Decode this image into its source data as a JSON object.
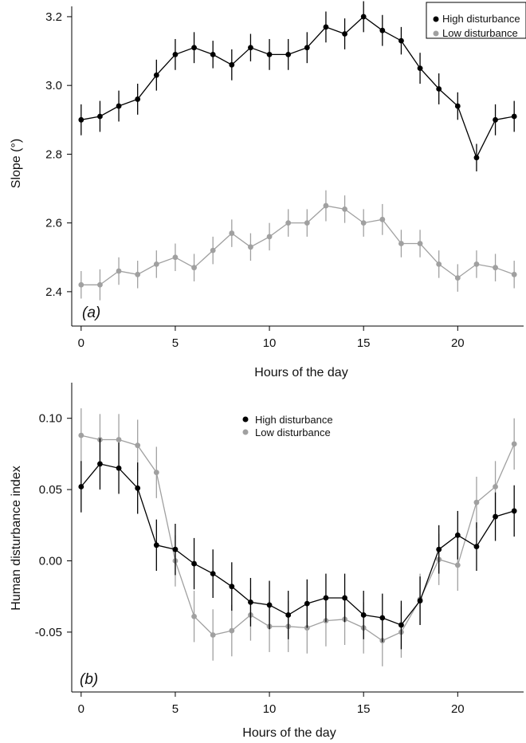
{
  "chart_data": [
    {
      "type": "line",
      "panel_label": "(a)",
      "xlabel": "Hours of the day",
      "ylabel": "Slope (°)",
      "xlim": [
        -0.5,
        23.5
      ],
      "ylim": [
        2.3,
        3.23
      ],
      "xticks": [
        0,
        5,
        10,
        15,
        20
      ],
      "yticks": [
        2.4,
        2.6,
        2.8,
        3.0,
        3.2
      ],
      "ytick_labels": [
        "2.4",
        "2.6",
        "2.8",
        "3.0",
        "3.2"
      ],
      "grid": false,
      "legend_position": "top-right",
      "legend_boxed": true,
      "x": [
        0,
        1,
        2,
        3,
        4,
        5,
        6,
        7,
        8,
        9,
        10,
        11,
        12,
        13,
        14,
        15,
        16,
        17,
        18,
        19,
        20,
        21,
        22,
        23
      ],
      "series": [
        {
          "name": "High disturbance",
          "color": "#000000",
          "values": [
            2.9,
            2.91,
            2.94,
            2.96,
            3.03,
            3.09,
            3.11,
            3.09,
            3.06,
            3.11,
            3.09,
            3.09,
            3.11,
            3.17,
            3.15,
            3.2,
            3.16,
            3.13,
            3.05,
            2.99,
            2.94,
            2.79,
            2.9,
            2.91
          ],
          "err": [
            0.045,
            0.045,
            0.045,
            0.045,
            0.045,
            0.045,
            0.045,
            0.04,
            0.045,
            0.04,
            0.045,
            0.045,
            0.045,
            0.045,
            0.045,
            0.045,
            0.045,
            0.04,
            0.045,
            0.045,
            0.04,
            0.04,
            0.045,
            0.045
          ]
        },
        {
          "name": "Low disturbance",
          "color": "#a0a0a0",
          "values": [
            2.42,
            2.42,
            2.46,
            2.45,
            2.48,
            2.5,
            2.47,
            2.52,
            2.57,
            2.53,
            2.56,
            2.6,
            2.6,
            2.65,
            2.64,
            2.6,
            2.61,
            2.54,
            2.54,
            2.48,
            2.44,
            2.48,
            2.47,
            2.45
          ],
          "err": [
            0.04,
            0.045,
            0.04,
            0.04,
            0.04,
            0.04,
            0.04,
            0.04,
            0.04,
            0.04,
            0.04,
            0.04,
            0.04,
            0.045,
            0.04,
            0.04,
            0.045,
            0.04,
            0.04,
            0.04,
            0.04,
            0.04,
            0.04,
            0.04
          ]
        }
      ]
    },
    {
      "type": "line",
      "panel_label": "(b)",
      "xlabel": "Hours of the day",
      "ylabel": "Human disturbance index",
      "xlim": [
        -0.5,
        23.5
      ],
      "ylim": [
        -0.092,
        0.125
      ],
      "xticks": [
        0,
        5,
        10,
        15,
        20
      ],
      "yticks": [
        -0.05,
        0.0,
        0.05,
        0.1
      ],
      "ytick_labels": [
        "-0.05",
        "0.00",
        "0.05",
        "0.10"
      ],
      "grid": false,
      "legend_position": "top-center",
      "legend_boxed": false,
      "x": [
        0,
        1,
        2,
        3,
        4,
        5,
        6,
        7,
        8,
        9,
        10,
        11,
        12,
        13,
        14,
        15,
        16,
        17,
        18,
        19,
        20,
        21,
        22,
        23
      ],
      "series": [
        {
          "name": "High disturbance",
          "color": "#000000",
          "values": [
            0.052,
            0.068,
            0.065,
            0.051,
            0.011,
            0.008,
            -0.002,
            -0.009,
            -0.018,
            -0.029,
            -0.031,
            -0.038,
            -0.03,
            -0.026,
            -0.026,
            -0.038,
            -0.04,
            -0.045,
            -0.028,
            0.008,
            0.018,
            0.01,
            0.031,
            0.035
          ],
          "err": [
            0.018,
            0.018,
            0.018,
            0.018,
            0.018,
            0.018,
            0.018,
            0.017,
            0.017,
            0.017,
            0.017,
            0.017,
            0.017,
            0.017,
            0.017,
            0.017,
            0.017,
            0.017,
            0.017,
            0.017,
            0.017,
            0.017,
            0.017,
            0.018
          ]
        },
        {
          "name": "Low disturbance",
          "color": "#a0a0a0",
          "values": [
            0.088,
            0.085,
            0.085,
            0.081,
            0.062,
            0.0,
            -0.039,
            -0.052,
            -0.049,
            -0.038,
            -0.046,
            -0.046,
            -0.047,
            -0.042,
            -0.041,
            -0.047,
            -0.056,
            -0.05,
            -0.027,
            0.001,
            -0.003,
            0.041,
            0.052,
            0.082
          ],
          "err": [
            0.019,
            0.018,
            0.018,
            0.018,
            0.018,
            0.018,
            0.018,
            0.018,
            0.018,
            0.018,
            0.018,
            0.018,
            0.018,
            0.018,
            0.018,
            0.018,
            0.018,
            0.018,
            0.018,
            0.018,
            0.018,
            0.018,
            0.018,
            0.018
          ]
        }
      ]
    }
  ]
}
